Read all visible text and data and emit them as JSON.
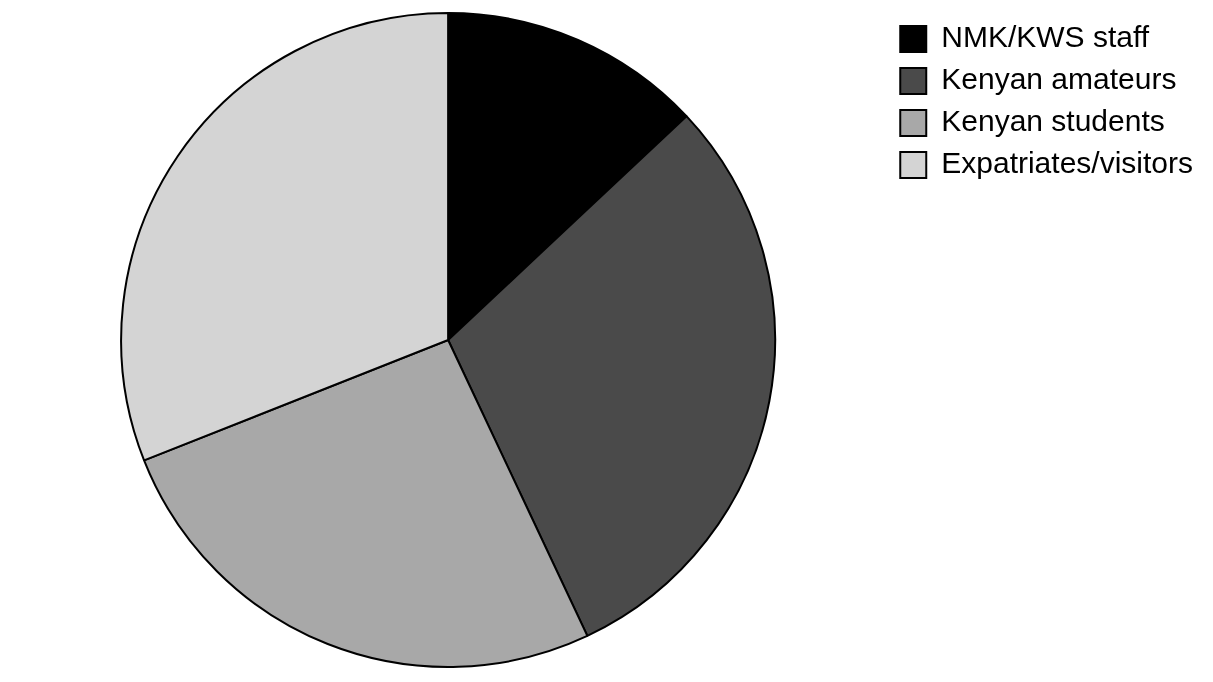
{
  "chart_data": {
    "type": "pie",
    "categories": [
      "NMK/KWS staff",
      "Kenyan amateurs",
      "Kenyan students",
      "Expatriates/visitors"
    ],
    "values": [
      13,
      30,
      26,
      31
    ],
    "colors": [
      "#000000",
      "#4a4a4a",
      "#a8a8a8",
      "#d4d4d4"
    ],
    "legend": "top right"
  }
}
